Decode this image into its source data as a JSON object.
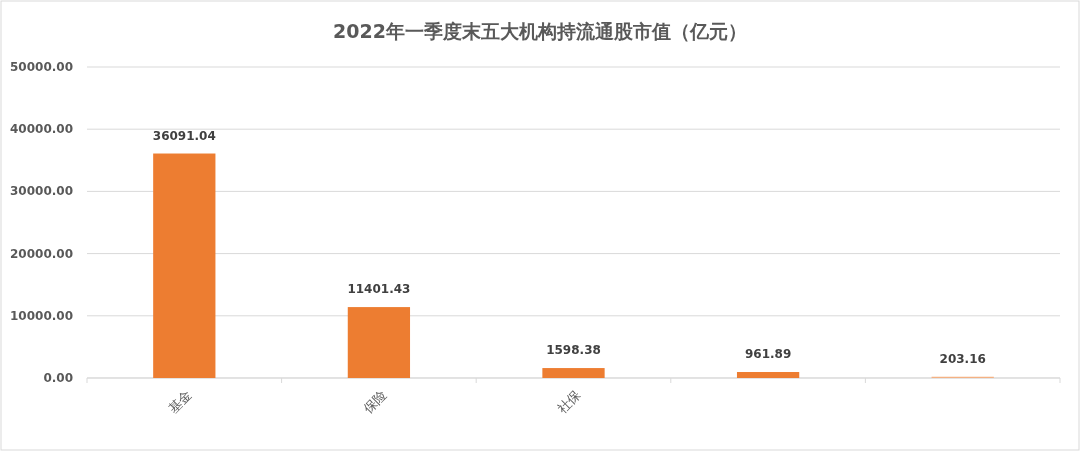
{
  "chart_data": {
    "type": "bar",
    "title": "2022年一季度末五大机构持流通股市值（亿元）",
    "categories": [
      "基金",
      "保险",
      "社保",
      null,
      null
    ],
    "values": [
      36091.04,
      11401.43,
      1598.38,
      961.89,
      203.16
    ],
    "colors": [
      "#ed7d31",
      "#ed7d31",
      "#ed7d31",
      "#ed7d31",
      "#f4b183"
    ],
    "ylim": [
      0,
      50000
    ],
    "yticks": [
      {
        "value": 0,
        "label": "0.00"
      },
      {
        "value": 10000,
        "label": "10000.00"
      },
      {
        "value": 20000,
        "label": "20000.00"
      },
      {
        "value": 30000,
        "label": "30000.00"
      },
      {
        "value": 40000,
        "label": "40000.00"
      },
      {
        "value": 50000,
        "label": "50000.00"
      }
    ],
    "grid": "y",
    "data_labels": true
  }
}
